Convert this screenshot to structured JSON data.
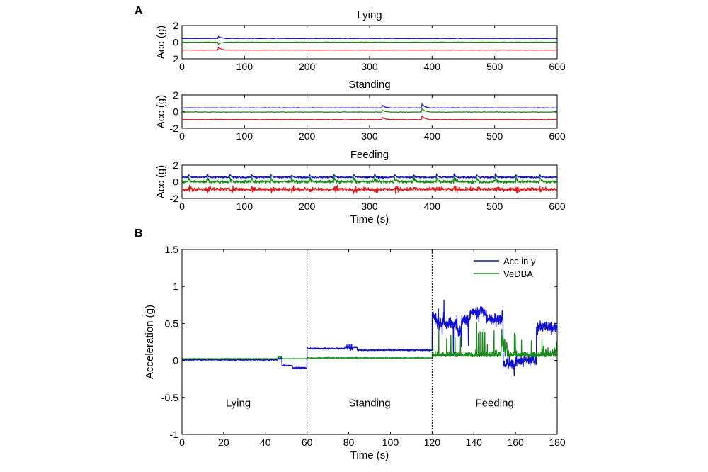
{
  "panel_labels": [
    "A",
    "B"
  ],
  "colors": {
    "x": "#e0191b",
    "y": "#1010d0",
    "z": "#1a8a1a",
    "vedba": "#1a8a1a"
  },
  "chart_data": [
    {
      "type": "line",
      "panel": "A",
      "title": "Lying",
      "xlabel": "",
      "ylabel": "Acc (g)",
      "xlim": [
        0,
        600
      ],
      "ylim": [
        -2,
        2
      ],
      "xticks": [
        "0",
        "100",
        "200",
        "300",
        "400",
        "500",
        "600"
      ],
      "yticks": [
        "2",
        "0",
        "-2"
      ],
      "series": [
        {
          "key": "y",
          "baseline": 0.45,
          "noise": 0.03,
          "events": [
            {
              "x": 58,
              "dy": 0.3
            }
          ]
        },
        {
          "key": "z",
          "baseline": 0.0,
          "noise": 0.03,
          "events": [
            {
              "x": 58,
              "dy": -0.3
            }
          ]
        },
        {
          "key": "x",
          "baseline": -0.95,
          "noise": 0.03,
          "events": [
            {
              "x": 58,
              "dy": 0.4
            }
          ]
        }
      ]
    },
    {
      "type": "line",
      "panel": "A",
      "title": "Standing",
      "xlabel": "",
      "ylabel": "Acc (g)",
      "xlim": [
        0,
        600
      ],
      "ylim": [
        -2,
        2
      ],
      "xticks": [
        "0",
        "100",
        "200",
        "300",
        "400",
        "500",
        "600"
      ],
      "yticks": [
        "2",
        "0",
        "-2"
      ],
      "series": [
        {
          "key": "y",
          "baseline": 0.45,
          "noise": 0.04,
          "events": [
            {
              "x": 320,
              "dy": 0.4
            },
            {
              "x": 383,
              "dy": 0.6
            }
          ]
        },
        {
          "key": "z",
          "baseline": -0.05,
          "noise": 0.04,
          "events": [
            {
              "x": 320,
              "dy": 0.3
            },
            {
              "x": 383,
              "dy": 0.5
            }
          ]
        },
        {
          "key": "x",
          "baseline": -0.95,
          "noise": 0.04,
          "events": [
            {
              "x": 320,
              "dy": 0.3
            },
            {
              "x": 383,
              "dy": 0.6
            }
          ]
        }
      ]
    },
    {
      "type": "line",
      "panel": "A",
      "title": "Feeding",
      "xlabel": "Time (s)",
      "ylabel": "Acc (g)",
      "xlim": [
        0,
        600
      ],
      "ylim": [
        -2,
        2
      ],
      "xticks": [
        "0",
        "100",
        "200",
        "300",
        "400",
        "500",
        "600"
      ],
      "yticks": [
        "2",
        "0",
        "-2"
      ],
      "series": [
        {
          "key": "y",
          "baseline": 0.55,
          "noise": 0.15,
          "events": []
        },
        {
          "key": "z",
          "baseline": 0.0,
          "noise": 0.25,
          "events": []
        },
        {
          "key": "x",
          "baseline": -0.9,
          "noise": 0.3,
          "events": []
        }
      ]
    },
    {
      "type": "line",
      "panel": "B",
      "title": "",
      "xlabel": "Time (s)",
      "ylabel": "Acceleration (g)",
      "xlim": [
        0,
        180
      ],
      "ylim": [
        -1,
        1.5
      ],
      "xticks": [
        "0",
        "20",
        "40",
        "60",
        "80",
        "100",
        "120",
        "140",
        "160",
        "180"
      ],
      "yticks": [
        "1.5",
        "1",
        "0.5",
        "0",
        "-0.5",
        "-1"
      ],
      "dividers": [
        60,
        120
      ],
      "regions": [
        {
          "label": "Lying",
          "x": 27
        },
        {
          "label": "Standing",
          "x": 90
        },
        {
          "label": "Feeding",
          "x": 150
        }
      ],
      "legend_placement": "top-right",
      "series": [
        {
          "name": "Acc in y",
          "key": "y"
        },
        {
          "name": "VeDBA",
          "key": "vedba"
        }
      ]
    }
  ]
}
